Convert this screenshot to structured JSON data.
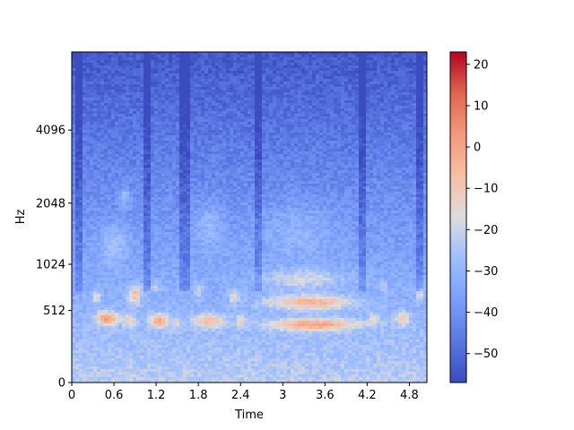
{
  "chart_data": {
    "type": "heatmap",
    "title": "",
    "xlabel": "Time",
    "ylabel": "Hz",
    "x_axis": {
      "range": [
        0,
        5.05
      ],
      "ticks": [
        0,
        0.6,
        1.2,
        1.8,
        2.4,
        3.0,
        3.6,
        4.2,
        4.8
      ],
      "tick_labels": [
        "0",
        "0.6",
        "1.2",
        "1.8",
        "2.4",
        "3",
        "3.6",
        "4.2",
        "4.8"
      ]
    },
    "y_axis": {
      "scale": "mel",
      "range": [
        0,
        8000
      ],
      "ticks": [
        0,
        512,
        1024,
        2048,
        4096
      ],
      "tick_labels": [
        "0",
        "512",
        "1024",
        "2048",
        "4096"
      ]
    },
    "colorbar": {
      "colormap": "coolwarm",
      "range": [
        -57,
        23
      ],
      "ticks": [
        -50,
        -40,
        -30,
        -20,
        -10,
        0,
        10,
        20
      ],
      "tick_labels": [
        "−50",
        "−40",
        "−30",
        "−20",
        "−10",
        "0",
        "10",
        "20"
      ]
    },
    "grid": false
  }
}
